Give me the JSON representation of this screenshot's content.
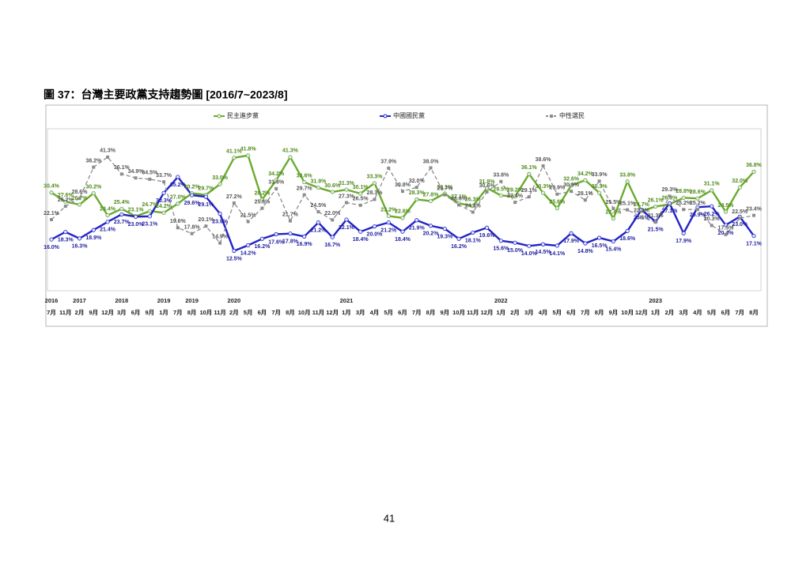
{
  "chart_data": {
    "type": "line",
    "title": "圖 37：台灣主要政黨支持趨勢圖  [2016/7~2023/8]",
    "categories": [
      "7月",
      "11月",
      "2月",
      "9月",
      "12月",
      "3月",
      "6月",
      "9月",
      "1月",
      "7月",
      "8月",
      "10月",
      "11月",
      "2月",
      "5月",
      "6月",
      "7月",
      "8月",
      "10月",
      "11月",
      "12月",
      "1月",
      "3月",
      "4月",
      "5月",
      "6月",
      "7月",
      "8月",
      "9月",
      "10月",
      "11月",
      "12月",
      "1月",
      "2月",
      "3月",
      "4月",
      "5月",
      "6月",
      "7月",
      "8月",
      "9月",
      "10月",
      "12月",
      "1月",
      "2月",
      "3月",
      "4月",
      "5月",
      "6月",
      "7月",
      "8月"
    ],
    "years": [
      "2016",
      null,
      "2017",
      null,
      null,
      "2018",
      null,
      null,
      "2019",
      null,
      "2019",
      null,
      null,
      "2020",
      null,
      null,
      null,
      null,
      null,
      null,
      null,
      "2021",
      null,
      null,
      null,
      null,
      null,
      null,
      null,
      null,
      null,
      null,
      "2022",
      null,
      null,
      null,
      null,
      null,
      null,
      null,
      null,
      null,
      null,
      "2023",
      null,
      null,
      null,
      null,
      null,
      null,
      null
    ],
    "ylim": [
      0,
      50
    ],
    "series": [
      {
        "name": "民主進步黨",
        "color": "#6aab2c",
        "label_color": "#4f8a1c",
        "marker": "circle",
        "dash": false,
        "values": [
          30.4,
          27.6,
          26.7,
          30.2,
          23.4,
          25.4,
          23.1,
          24.7,
          24.2,
          27.0,
          30.2,
          29.7,
          33.0,
          41.1,
          41.8,
          28.2,
          34.2,
          41.3,
          33.6,
          31.9,
          30.6,
          31.3,
          30.1,
          33.3,
          23.2,
          22.6,
          28.3,
          27.8,
          30.1,
          27.1,
          26.3,
          31.8,
          29.5,
          29.2,
          36.1,
          30.3,
          25.6,
          32.6,
          34.2,
          30.3,
          22.4,
          33.8,
          24.7,
          26.1,
          26.8,
          28.8,
          28.6,
          31.1,
          24.5,
          32.0,
          36.8
        ],
        "value_labels": [
          "30.4%",
          "27.6%",
          "26.7%",
          "30.2%",
          "23.4%",
          "25.4%",
          "23.1%",
          "24.7%",
          "24.2%",
          "27.0%",
          "30.2%",
          "29.7%",
          "33.0%",
          "41.1%",
          "41.8%",
          "28.2%",
          "34.2%",
          "41.3%",
          "33.6%",
          "31.9%",
          "30.6%",
          "31.3%",
          "30.1%",
          "33.3%",
          "23.2%",
          "22.6%",
          "28.3%",
          "27.8%",
          "30.1%",
          "27.1%",
          "26.3%",
          "31.8%",
          "29.5%",
          "29.2%",
          "36.1%",
          "30.3%",
          "25.6%",
          "32.6%",
          "34.2%",
          "30.3%",
          "22.4%",
          "33.8%",
          "24.7%",
          "26.1%",
          "26.8%",
          "28.8%",
          "28.6%",
          "31.1%",
          "24.5%",
          "32.0%",
          "36.8%"
        ]
      },
      {
        "name": "中國國民黨",
        "color": "#2323c8",
        "label_color": "#1f1fa0",
        "marker": "circle",
        "dash": false,
        "values": [
          16.0,
          18.3,
          16.3,
          18.9,
          21.4,
          23.7,
          23.0,
          23.1,
          30.3,
          35.2,
          29.6,
          29.1,
          23.9,
          12.5,
          14.2,
          16.2,
          17.6,
          17.8,
          16.9,
          21.2,
          16.7,
          22.1,
          18.4,
          20.0,
          21.2,
          18.4,
          21.9,
          20.2,
          19.3,
          16.2,
          18.1,
          19.6,
          15.6,
          15.0,
          14.0,
          14.5,
          14.1,
          17.9,
          14.8,
          16.5,
          15.4,
          18.6,
          25.1,
          21.5,
          27.1,
          17.9,
          25.9,
          26.2,
          20.4,
          23.0,
          17.1
        ],
        "value_labels": [
          "16.0%",
          "18.3%",
          "16.3%",
          "18.9%",
          "21.4%",
          "23.7%",
          "23.0%",
          "23.1%",
          "30.3%",
          "35.2%",
          "29.6%",
          "29.1%",
          "23.9%",
          "12.5%",
          "14.2%",
          "16.2%",
          "17.6%",
          "17.8%",
          "16.9%",
          "21.2%",
          "16.7%",
          "22.1%",
          "18.4%",
          "20.0%",
          "21.2%",
          "18.4%",
          "21.9%",
          "20.2%",
          "19.3%",
          "16.2%",
          "18.1%",
          "19.6%",
          "15.6%",
          "15.0%",
          "14.0%",
          "14.5%",
          "14.1%",
          "17.9%",
          "14.8%",
          "16.5%",
          "15.4%",
          "18.6%",
          "25.1%",
          "21.5%",
          "27.1%",
          "17.9%",
          "25.9%",
          "26.2%",
          "20.4%",
          "23.0%",
          "17.1%"
        ]
      },
      {
        "name": "中性選民",
        "color": "#8c8c8c",
        "label_color": "#555555",
        "marker": "square",
        "dash": true,
        "values": [
          22.1,
          26.2,
          28.6,
          38.2,
          41.3,
          36.1,
          34.9,
          34.5,
          33.7,
          19.6,
          17.8,
          20.1,
          14.9,
          27.2,
          21.5,
          25.6,
          31.6,
          21.7,
          29.7,
          24.5,
          22.0,
          27.3,
          26.5,
          28.3,
          37.9,
          30.8,
          32.0,
          38.0,
          29.7,
          26.6,
          24.4,
          30.6,
          33.8,
          27.4,
          29.1,
          38.6,
          29.9,
          30.8,
          28.1,
          33.9,
          25.5,
          25.1,
          22.9,
          21.3,
          29.3,
          25.2,
          25.2,
          20.3,
          17.5,
          22.5,
          23.4
        ],
        "value_labels": [
          "22.1%",
          "26.2%",
          "28.6%",
          "38.2%",
          "41.3%",
          "36.1%",
          "34.9%",
          "34.5%",
          "33.7%",
          "19.6%",
          "17.8%",
          "20.1%",
          "14.9%",
          "27.2%",
          "21.5%",
          "25.6%",
          "31.6%",
          "21.7%",
          "29.7%",
          "24.5%",
          "22.0%",
          "27.3%",
          "26.5%",
          "28.3%",
          "37.9%",
          "30.8%",
          "32.0%",
          "38.0%",
          "29.7%",
          "26.6%",
          "24.4%",
          "30.6%",
          "33.8%",
          "27.4%",
          "29.1%",
          "38.6%",
          "29.9%",
          "30.8%",
          "28.1%",
          "33.9%",
          "25.5%",
          "25.1%",
          "22.9%",
          "21.3%",
          "29.3%",
          "25.2%",
          "25.2%",
          "20.3%",
          "17.5%",
          "22.5%",
          "23.4%"
        ]
      }
    ]
  },
  "page": {
    "number": "41"
  }
}
